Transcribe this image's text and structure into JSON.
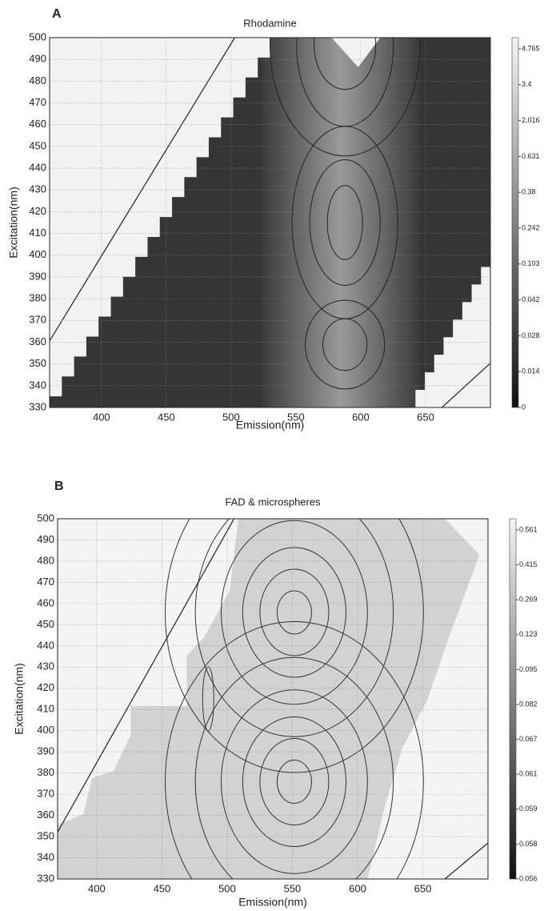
{
  "chart_data": [
    {
      "type": "heatmap",
      "panel_label": "A",
      "title": "Rhodamine",
      "xlabel": "Emission(nm)",
      "ylabel": "Excitation(nm)",
      "xlim": [
        360,
        700
      ],
      "ylim": [
        330,
        500
      ],
      "xticks": [
        400,
        450,
        500,
        550,
        600,
        650
      ],
      "yticks": [
        330,
        340,
        350,
        360,
        370,
        380,
        390,
        400,
        410,
        420,
        430,
        440,
        450,
        460,
        470,
        480,
        490,
        500
      ],
      "grid": true,
      "colorbar_ticks": [
        4.765,
        3.4,
        2.016,
        0.631,
        0.38,
        0.242,
        0.103,
        0.042,
        0.028,
        0.014,
        0
      ]
    },
    {
      "type": "heatmap",
      "panel_label": "B",
      "title": "FAD & microspheres",
      "xlabel": "Emission(nm)",
      "ylabel": "Excitation(nm)",
      "xlim": [
        370,
        700
      ],
      "ylim": [
        330,
        500
      ],
      "xticks": [
        400,
        450,
        500,
        550,
        600,
        650
      ],
      "yticks": [
        330,
        340,
        350,
        360,
        370,
        380,
        390,
        400,
        410,
        420,
        430,
        440,
        450,
        460,
        470,
        480,
        490,
        500
      ],
      "grid": true,
      "colorbar_ticks": [
        0.561,
        0.415,
        0.269,
        0.123,
        0.095,
        0.082,
        0.067,
        0.061,
        0.059,
        0.058,
        0.056
      ]
    }
  ]
}
